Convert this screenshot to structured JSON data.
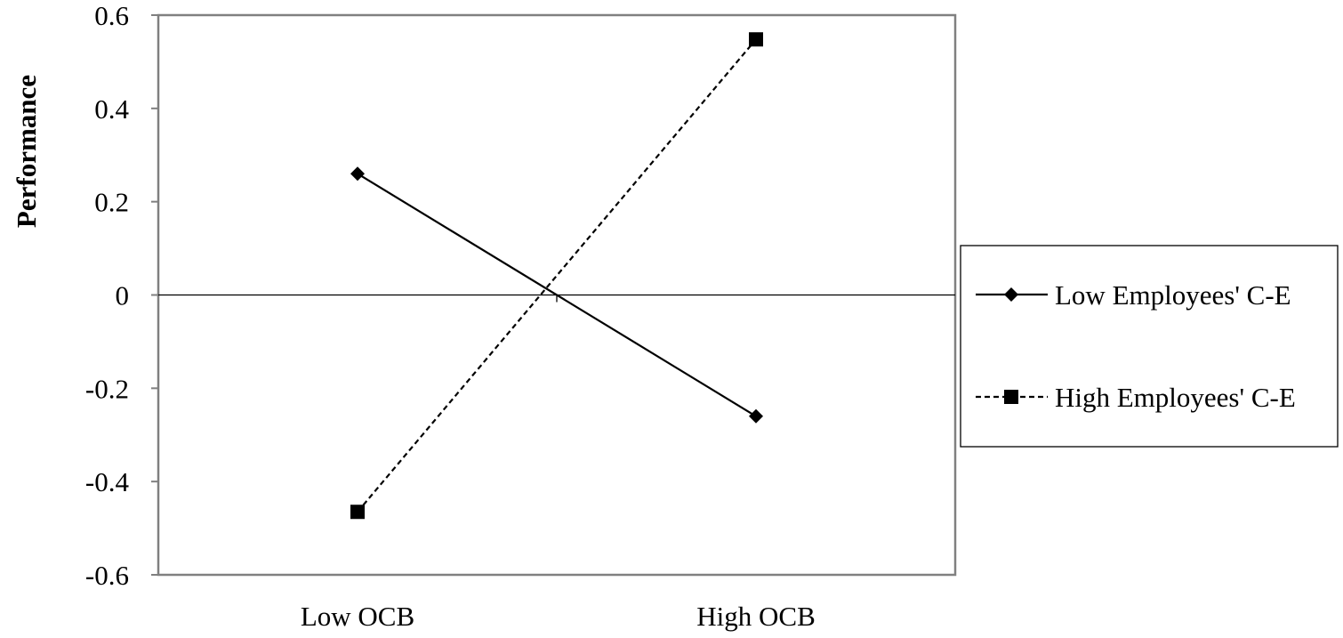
{
  "chart_data": {
    "type": "line",
    "title": "",
    "xlabel": "",
    "ylabel": "Performance",
    "categories": [
      "Low OCB",
      "High OCB"
    ],
    "ylim": [
      -0.6,
      0.6
    ],
    "yticks": [
      0.6,
      0.4,
      0.2,
      0,
      -0.2,
      -0.4,
      -0.6
    ],
    "ytick_labels": [
      "0.6",
      "0.4",
      "0.2",
      "0",
      "-0.2",
      "-0.4",
      "-0.6"
    ],
    "grid": false,
    "legend_position": "right",
    "series": [
      {
        "name": "Low Employees' C-E",
        "values": [
          0.26,
          -0.26
        ],
        "marker": "diamond",
        "line_style": "solid",
        "color": "#000000"
      },
      {
        "name": "High Employees' C-E",
        "values": [
          -0.465,
          0.548
        ],
        "marker": "square",
        "line_style": "dashed",
        "color": "#000000"
      }
    ]
  }
}
